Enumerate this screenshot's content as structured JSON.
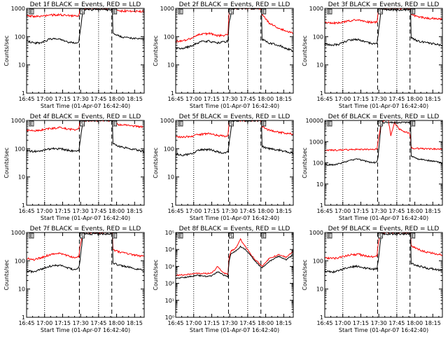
{
  "figure": {
    "x_tick_labels": [
      "16:45",
      "17:00",
      "17:15",
      "17:30",
      "17:45",
      "18:00",
      "18:15"
    ],
    "x_tick_minutes": [
      0,
      15,
      30,
      45,
      60,
      75,
      90
    ],
    "x_range_minutes": [
      0,
      98
    ],
    "dotted_line_minutes": [
      15,
      60
    ],
    "dashed_line_minutes": [
      44,
      71
    ],
    "marker_minutes": [
      44,
      71
    ],
    "marker_labels": [
      "S",
      "E"
    ],
    "edge_marker_label": "E",
    "xlabel": "Start Time (01-Apr-07 16:42:40)",
    "ylabel": "Counts/sec",
    "colors": {
      "events": "#000000",
      "lld": "#ff0000",
      "axes": "#000000"
    }
  },
  "chart_data": [
    {
      "type": "line",
      "title": "Det 1f BLACK = Events, RED = LLD",
      "ylim": [
        1,
        1000
      ],
      "yscale": "log",
      "ytick_labels": [
        "1",
        "10",
        "100",
        "1000"
      ],
      "series": [
        {
          "name": "Events",
          "color": "#000000",
          "x": [
            0,
            6,
            12,
            20,
            28,
            34,
            40,
            43.5,
            44.5,
            47,
            55,
            62,
            70.5,
            71.5,
            72,
            78,
            86,
            98
          ],
          "y": [
            70,
            60,
            60,
            85,
            80,
            65,
            60,
            65,
            140,
            900,
            900,
            900,
            900,
            900,
            130,
            100,
            90,
            80
          ]
        },
        {
          "name": "LLD",
          "color": "#ff0000",
          "x": [
            0,
            6,
            12,
            20,
            28,
            34,
            40,
            43.5,
            44.5,
            47,
            55,
            62,
            70.5,
            71.5,
            72,
            78,
            86,
            98
          ],
          "y": [
            560,
            520,
            530,
            580,
            600,
            560,
            540,
            560,
            900,
            1000,
            1000,
            1000,
            1000,
            1000,
            850,
            820,
            800,
            780
          ]
        }
      ]
    },
    {
      "type": "line",
      "title": "Det 2f BLACK = Events, RED = LLD",
      "ylim": [
        1,
        1000
      ],
      "yscale": "log",
      "ytick_labels": [
        "1",
        "10",
        "100",
        "1000"
      ],
      "series": [
        {
          "name": "Events",
          "color": "#000000",
          "x": [
            0,
            6,
            12,
            20,
            28,
            34,
            40,
            43.5,
            44.5,
            47,
            55,
            62,
            70.5,
            71.5,
            72,
            78,
            86,
            98
          ],
          "y": [
            40,
            38,
            45,
            65,
            70,
            60,
            65,
            70,
            300,
            1000,
            1000,
            1000,
            1000,
            1000,
            80,
            60,
            50,
            30
          ]
        },
        {
          "name": "LLD",
          "color": "#ff0000",
          "x": [
            0,
            6,
            12,
            20,
            28,
            34,
            40,
            43.5,
            44.5,
            47,
            55,
            62,
            70.5,
            71.5,
            72,
            78,
            86,
            98
          ],
          "y": [
            70,
            70,
            85,
            120,
            130,
            110,
            110,
            120,
            700,
            1000,
            1000,
            1000,
            1000,
            1000,
            600,
            300,
            200,
            130
          ]
        }
      ]
    },
    {
      "type": "line",
      "title": "Det 3f BLACK = Events, RED = LLD",
      "ylim": [
        1,
        1000
      ],
      "yscale": "log",
      "ytick_labels": [
        "1",
        "10",
        "100",
        "1000"
      ],
      "series": [
        {
          "name": "Events",
          "color": "#000000",
          "x": [
            0,
            6,
            12,
            20,
            28,
            34,
            40,
            43.5,
            44.5,
            47,
            55,
            62,
            70.5,
            71.5,
            72,
            78,
            86,
            98
          ],
          "y": [
            55,
            50,
            55,
            75,
            80,
            65,
            55,
            58,
            120,
            900,
            900,
            900,
            900,
            900,
            90,
            70,
            60,
            50
          ]
        },
        {
          "name": "LLD",
          "color": "#ff0000",
          "x": [
            0,
            6,
            12,
            20,
            28,
            34,
            40,
            43.5,
            44.5,
            47,
            55,
            62,
            70.5,
            71.5,
            72,
            78,
            86,
            98
          ],
          "y": [
            320,
            300,
            310,
            360,
            400,
            340,
            320,
            330,
            800,
            1000,
            1000,
            1000,
            1000,
            1000,
            600,
            500,
            450,
            420
          ]
        }
      ]
    },
    {
      "type": "line",
      "title": "Det 4f BLACK = Events, RED = LLD",
      "ylim": [
        1,
        1000
      ],
      "yscale": "log",
      "ytick_labels": [
        "1",
        "10",
        "100",
        "1000"
      ],
      "series": [
        {
          "name": "Events",
          "color": "#000000",
          "x": [
            0,
            6,
            12,
            20,
            28,
            34,
            40,
            43.5,
            44.5,
            47,
            55,
            62,
            70.5,
            71.5,
            72,
            78,
            86,
            98
          ],
          "y": [
            85,
            80,
            85,
            100,
            100,
            90,
            80,
            85,
            160,
            1000,
            1000,
            1000,
            1000,
            1000,
            150,
            120,
            100,
            80
          ]
        },
        {
          "name": "LLD",
          "color": "#ff0000",
          "x": [
            0,
            6,
            12,
            20,
            28,
            34,
            40,
            43.5,
            44.5,
            47,
            55,
            62,
            70.5,
            71.5,
            72,
            78,
            86,
            98
          ],
          "y": [
            450,
            430,
            460,
            520,
            560,
            500,
            470,
            480,
            900,
            1000,
            1000,
            1000,
            1000,
            1000,
            800,
            700,
            650,
            600
          ]
        }
      ]
    },
    {
      "type": "line",
      "title": "Det 5f BLACK = Events, RED = LLD",
      "ylim": [
        1,
        1000
      ],
      "yscale": "log",
      "ytick_labels": [
        "1",
        "10",
        "100",
        "1000"
      ],
      "series": [
        {
          "name": "Events",
          "color": "#000000",
          "x": [
            0,
            6,
            12,
            20,
            28,
            34,
            40,
            43.5,
            44.5,
            47,
            55,
            62,
            70.5,
            71.5,
            72,
            78,
            86,
            98
          ],
          "y": [
            65,
            60,
            65,
            90,
            95,
            80,
            70,
            75,
            150,
            1000,
            1000,
            1000,
            1000,
            1000,
            120,
            100,
            90,
            70
          ]
        },
        {
          "name": "LLD",
          "color": "#ff0000",
          "x": [
            0,
            6,
            12,
            20,
            28,
            34,
            40,
            43.5,
            44.5,
            47,
            55,
            62,
            70.5,
            71.5,
            72,
            78,
            86,
            98
          ],
          "y": [
            270,
            260,
            270,
            320,
            350,
            300,
            280,
            290,
            800,
            1000,
            1000,
            1000,
            1000,
            1000,
            600,
            450,
            380,
            330
          ]
        }
      ]
    },
    {
      "type": "line",
      "title": "Det 6f BLACK = Events, RED = LLD",
      "ylim": [
        1,
        10000
      ],
      "yscale": "log",
      "ytick_labels": [
        "1",
        "10",
        "100",
        "1000",
        "10000"
      ],
      "series": [
        {
          "name": "Events",
          "color": "#000000",
          "x": [
            0,
            6,
            12,
            20,
            28,
            34,
            40,
            43.5,
            44.5,
            47,
            55,
            62,
            70.5,
            71.5,
            72,
            78,
            86,
            98
          ],
          "y": [
            85,
            80,
            90,
            130,
            150,
            120,
            100,
            110,
            200,
            8000,
            8000,
            8000,
            8000,
            8000,
            200,
            150,
            130,
            100
          ]
        },
        {
          "name": "LLD",
          "color": "#ff0000",
          "x": [
            0,
            6,
            12,
            20,
            28,
            34,
            40,
            43.5,
            44.5,
            47,
            49,
            53,
            55,
            58,
            62,
            66,
            70.5,
            71.5,
            72,
            78,
            86,
            98
          ],
          "y": [
            400,
            400,
            400,
            420,
            440,
            430,
            420,
            450,
            1200,
            8000,
            10000,
            10000,
            2000,
            8000,
            4000,
            3000,
            2500,
            1500,
            500,
            480,
            460,
            450
          ]
        }
      ]
    },
    {
      "type": "line",
      "title": "Det 7f BLACK = Events, RED = LLD",
      "ylim": [
        1,
        1000
      ],
      "yscale": "log",
      "ytick_labels": [
        "1",
        "10",
        "100",
        "1000"
      ],
      "series": [
        {
          "name": "Events",
          "color": "#000000",
          "x": [
            0,
            6,
            12,
            20,
            28,
            34,
            40,
            43.5,
            44.5,
            47,
            55,
            62,
            70.5,
            71.5,
            72,
            78,
            86,
            98
          ],
          "y": [
            45,
            40,
            50,
            65,
            70,
            55,
            50,
            55,
            100,
            900,
            900,
            900,
            900,
            900,
            80,
            70,
            60,
            45
          ]
        },
        {
          "name": "LLD",
          "color": "#ff0000",
          "x": [
            0,
            6,
            12,
            20,
            28,
            34,
            40,
            43.5,
            44.5,
            47,
            55,
            62,
            70.5,
            71.5,
            72,
            78,
            86,
            98
          ],
          "y": [
            120,
            110,
            130,
            170,
            180,
            150,
            130,
            140,
            300,
            1000,
            1000,
            1000,
            1000,
            1000,
            250,
            200,
            170,
            140
          ]
        }
      ]
    },
    {
      "type": "line",
      "title": "Det 8f BLACK = Events, RED = LLD",
      "ylim": [
        1,
        100000
      ],
      "yscale": "log",
      "ytick_labels": [
        "10^0",
        "10^1",
        "10^2",
        "10^3",
        "10^4",
        "10^5"
      ],
      "series": [
        {
          "name": "Events",
          "color": "#000000",
          "x": [
            0,
            6,
            12,
            18,
            24,
            30,
            35,
            40,
            43.5,
            44.5,
            46,
            50,
            54,
            58,
            62,
            66,
            68,
            72,
            78,
            86,
            92,
            98
          ],
          "y": [
            200,
            220,
            250,
            300,
            260,
            280,
            500,
            300,
            250,
            2000,
            6000,
            8000,
            15000,
            10000,
            5000,
            2000,
            1500,
            800,
            2000,
            4000,
            2500,
            5000
          ]
        },
        {
          "name": "LLD",
          "color": "#ff0000",
          "x": [
            0,
            6,
            12,
            18,
            24,
            30,
            35,
            40,
            43.5,
            44.5,
            46,
            50,
            54,
            58,
            62,
            66,
            68,
            72,
            78,
            86,
            92,
            98
          ],
          "y": [
            300,
            320,
            350,
            400,
            380,
            400,
            1000,
            400,
            350,
            3000,
            8000,
            12000,
            40000,
            15000,
            6000,
            2500,
            2000,
            1000,
            3000,
            5000,
            3500,
            8000
          ]
        }
      ]
    },
    {
      "type": "line",
      "title": "Det 9f BLACK = Events, RED = LLD",
      "ylim": [
        1,
        1000
      ],
      "yscale": "log",
      "ytick_labels": [
        "1",
        "10",
        "100",
        "1000"
      ],
      "series": [
        {
          "name": "Events",
          "color": "#000000",
          "x": [
            0,
            6,
            12,
            20,
            28,
            34,
            40,
            43.5,
            44.5,
            47,
            55,
            62,
            70.5,
            71.5,
            72,
            78,
            86,
            98
          ],
          "y": [
            45,
            40,
            45,
            60,
            65,
            55,
            50,
            55,
            100,
            900,
            900,
            900,
            900,
            900,
            80,
            65,
            55,
            45
          ]
        },
        {
          "name": "LLD",
          "color": "#ff0000",
          "x": [
            0,
            6,
            12,
            20,
            28,
            34,
            40,
            43.5,
            44.5,
            47,
            55,
            62,
            70.5,
            71.5,
            72,
            78,
            86,
            98
          ],
          "y": [
            130,
            120,
            130,
            160,
            170,
            150,
            140,
            150,
            400,
            1000,
            1000,
            1000,
            1000,
            1000,
            350,
            250,
            200,
            160
          ]
        }
      ]
    }
  ]
}
